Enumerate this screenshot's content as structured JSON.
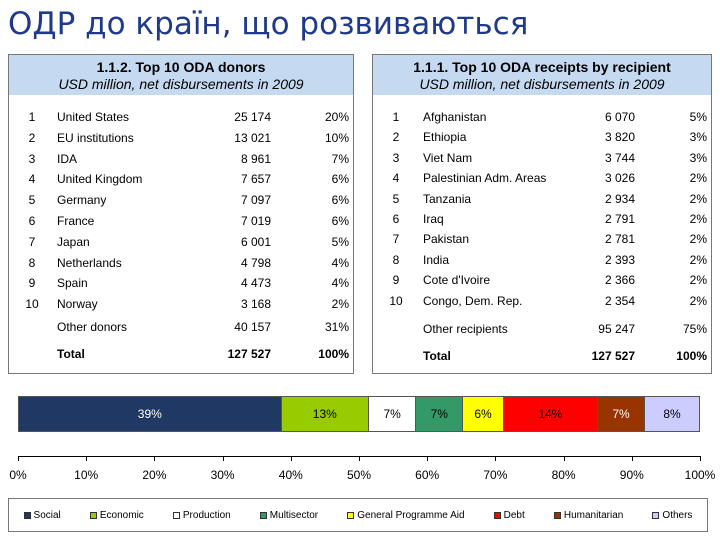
{
  "title": "ОДР до країн, що розвиваються",
  "donors": {
    "title": "1.1.2. Top 10 ODA donors",
    "subtitle": "USD million, net disbursements in 2009",
    "rows": [
      {
        "rank": "1",
        "name": "United States",
        "value": "25 174",
        "pct": "20%"
      },
      {
        "rank": "2",
        "name": "EU institutions",
        "value": "13 021",
        "pct": "10%"
      },
      {
        "rank": "3",
        "name": "IDA",
        "value": "8 961",
        "pct": "7%"
      },
      {
        "rank": "4",
        "name": "United Kingdom",
        "value": "7 657",
        "pct": "6%"
      },
      {
        "rank": "5",
        "name": "Germany",
        "value": "7 097",
        "pct": "6%"
      },
      {
        "rank": "6",
        "name": "France",
        "value": "7 019",
        "pct": "6%"
      },
      {
        "rank": "7",
        "name": "Japan",
        "value": "6 001",
        "pct": "5%"
      },
      {
        "rank": "8",
        "name": "Netherlands",
        "value": "4 798",
        "pct": "4%"
      },
      {
        "rank": "9",
        "name": "Spain",
        "value": "4 473",
        "pct": "4%"
      },
      {
        "rank": "10",
        "name": "Norway",
        "value": "3 168",
        "pct": "2%"
      }
    ],
    "other": {
      "name": "Other donors",
      "value": "40 157",
      "pct": "31%"
    },
    "total": {
      "name": "Total",
      "value": "127 527",
      "pct": "100%"
    }
  },
  "recipients": {
    "title": "1.1.1. Top 10 ODA receipts by recipient",
    "subtitle": "USD million, net disbursements in 2009",
    "rows": [
      {
        "rank": "1",
        "name": "Afghanistan",
        "value": "6 070",
        "pct": "5%"
      },
      {
        "rank": "2",
        "name": "Ethiopia",
        "value": "3 820",
        "pct": "3%"
      },
      {
        "rank": "3",
        "name": "Viet Nam",
        "value": "3 744",
        "pct": "3%"
      },
      {
        "rank": "4",
        "name": "Palestinian Adm. Areas",
        "value": "3 026",
        "pct": "2%"
      },
      {
        "rank": "5",
        "name": "Tanzania",
        "value": "2 934",
        "pct": "2%"
      },
      {
        "rank": "6",
        "name": "Iraq",
        "value": "2 791",
        "pct": "2%"
      },
      {
        "rank": "7",
        "name": "Pakistan",
        "value": "2 781",
        "pct": "2%"
      },
      {
        "rank": "8",
        "name": "India",
        "value": "2 393",
        "pct": "2%"
      },
      {
        "rank": "9",
        "name": "Cote d'Ivoire",
        "value": "2 366",
        "pct": "2%"
      },
      {
        "rank": "10",
        "name": "Congo, Dem. Rep.",
        "value": "2 354",
        "pct": "2%"
      }
    ],
    "other": {
      "name": "Other recipients",
      "value": "95 247",
      "pct": "75%"
    },
    "total": {
      "name": "Total",
      "value": "127 527",
      "pct": "100%"
    }
  },
  "chart_data": {
    "type": "bar",
    "orientation": "horizontal-stacked",
    "categories": [
      "Social",
      "Economic",
      "Production",
      "Multisector",
      "General Programme Aid",
      "Debt",
      "Humanitarian",
      "Others"
    ],
    "values": [
      39,
      13,
      7,
      7,
      6,
      14,
      7,
      8
    ],
    "labels": [
      "39%",
      "13%",
      "7%",
      "7%",
      "6%",
      "14%",
      "7%",
      "8%"
    ],
    "colors": [
      "#1f3864",
      "#99cc00",
      "#ffffff",
      "#339966",
      "#ffff00",
      "#ff0000",
      "#993300",
      "#ccccff"
    ],
    "label_colors": [
      "#ffffff",
      "#000000",
      "#000000",
      "#000000",
      "#000000",
      "#000000",
      "#ffffff",
      "#000000"
    ],
    "ticks": [
      "0%",
      "10%",
      "20%",
      "30%",
      "40%",
      "50%",
      "60%",
      "70%",
      "80%",
      "90%",
      "100%"
    ],
    "xlim": [
      0,
      100
    ],
    "legend_position": "bottom"
  }
}
